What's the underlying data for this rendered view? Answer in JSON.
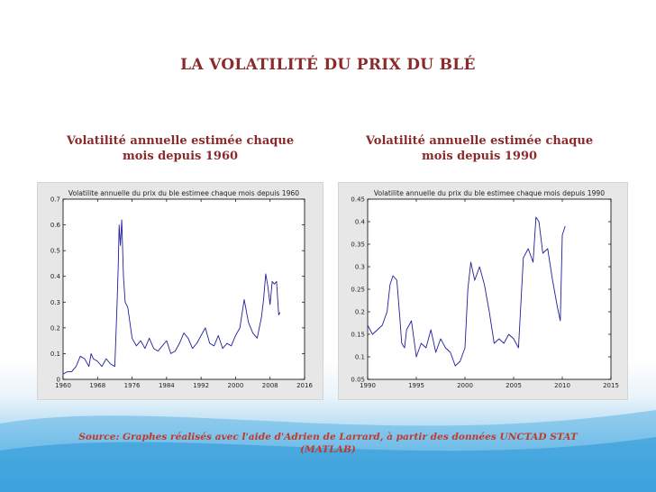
{
  "slide": {
    "title": "LA VOLATILITÉ DU PRIX DU BLÉ",
    "subtitle_left": "Volatilité annuelle estimée chaque mois depuis 1960",
    "subtitle_right": "Volatilité annuelle estimée chaque mois depuis 1990",
    "source": "Source: Graphes réalisés avec l'aide d'Adrien de Larrard, à partir des données UNCTAD STAT (MATLAB)"
  },
  "colors": {
    "title": "#8b2a2a",
    "source": "#c0392b",
    "series": "#1f1f9e"
  },
  "chart_data": [
    {
      "type": "line",
      "title": "Volatilite annuelle du prix du ble estimee chaque mois depuis 1960",
      "xlabel": "",
      "ylabel": "",
      "xlim": [
        1960,
        2016
      ],
      "ylim": [
        0,
        0.7
      ],
      "xticks": [
        1960,
        1968,
        1976,
        1984,
        1992,
        2000,
        2008,
        2016
      ],
      "yticks": [
        0,
        0.1,
        0.2,
        0.3,
        0.4,
        0.5,
        0.6,
        0.7
      ],
      "ytick_labels": [
        "0",
        "0.1",
        "0.2",
        "0.3",
        "0.4",
        "0.5",
        "0.6",
        "0.7"
      ],
      "grid": false,
      "series": [
        {
          "color": "#1f1f9e",
          "x": [
            1960,
            1961,
            1962,
            1963,
            1964,
            1965,
            1966,
            1966.5,
            1967,
            1968,
            1969,
            1970,
            1971,
            1972,
            1972.5,
            1972.8,
            1973,
            1973.3,
            1973.6,
            1974,
            1974.4,
            1975,
            1976,
            1977,
            1978,
            1979,
            1980,
            1981,
            1982,
            1983,
            1984,
            1985,
            1986,
            1987,
            1988,
            1989,
            1990,
            1991,
            1992,
            1993,
            1994,
            1995,
            1996,
            1997,
            1998,
            1999,
            2000,
            2001,
            2002,
            2003,
            2004,
            2005,
            2006,
            2006.5,
            2007,
            2007.5,
            2008,
            2008.5,
            2009,
            2009.5,
            2010,
            2010.3
          ],
          "y": [
            0.02,
            0.03,
            0.03,
            0.05,
            0.09,
            0.08,
            0.05,
            0.1,
            0.08,
            0.07,
            0.05,
            0.08,
            0.06,
            0.05,
            0.28,
            0.45,
            0.6,
            0.52,
            0.62,
            0.4,
            0.3,
            0.28,
            0.16,
            0.13,
            0.15,
            0.12,
            0.16,
            0.12,
            0.11,
            0.13,
            0.15,
            0.1,
            0.11,
            0.14,
            0.18,
            0.16,
            0.12,
            0.14,
            0.17,
            0.2,
            0.14,
            0.13,
            0.17,
            0.12,
            0.14,
            0.13,
            0.17,
            0.2,
            0.31,
            0.22,
            0.18,
            0.16,
            0.24,
            0.31,
            0.41,
            0.36,
            0.29,
            0.38,
            0.37,
            0.38,
            0.25,
            0.26
          ]
        }
      ]
    },
    {
      "type": "line",
      "title": "Volatilite annuelle du prix du ble estimee chaque mois depuis 1990",
      "xlabel": "",
      "ylabel": "",
      "xlim": [
        1990,
        2015
      ],
      "ylim": [
        0.05,
        0.45
      ],
      "xticks": [
        1990,
        1995,
        2000,
        2005,
        2010,
        2015
      ],
      "yticks": [
        0.05,
        0.1,
        0.15,
        0.2,
        0.25,
        0.3,
        0.35,
        0.4,
        0.45
      ],
      "ytick_labels": [
        "0.05",
        "0.1",
        "0.15",
        "0.2",
        "0.25",
        "0.3",
        "0.35",
        "0.4",
        "0.45"
      ],
      "grid": false,
      "series": [
        {
          "color": "#1f1f9e",
          "x": [
            1990,
            1990.5,
            1991,
            1991.5,
            1992,
            1992.3,
            1992.6,
            1993,
            1993.3,
            1993.5,
            1993.8,
            1994,
            1994.5,
            1995,
            1995.5,
            1996,
            1996.5,
            1997,
            1997.5,
            1998,
            1998.5,
            1999,
            1999.5,
            2000,
            2000.3,
            2000.6,
            2001,
            2001.5,
            2002,
            2002.5,
            2003,
            2003.5,
            2004,
            2004.5,
            2005,
            2005.5,
            2006,
            2006.5,
            2007,
            2007.3,
            2007.6,
            2008,
            2008.5,
            2009,
            2009.5,
            2009.8,
            2010,
            2010.3
          ],
          "y": [
            0.17,
            0.15,
            0.16,
            0.17,
            0.2,
            0.26,
            0.28,
            0.27,
            0.19,
            0.13,
            0.12,
            0.16,
            0.18,
            0.1,
            0.13,
            0.12,
            0.16,
            0.11,
            0.14,
            0.12,
            0.11,
            0.08,
            0.09,
            0.12,
            0.25,
            0.31,
            0.27,
            0.3,
            0.26,
            0.2,
            0.13,
            0.14,
            0.13,
            0.15,
            0.14,
            0.12,
            0.32,
            0.34,
            0.31,
            0.41,
            0.4,
            0.33,
            0.34,
            0.27,
            0.21,
            0.18,
            0.37,
            0.39
          ]
        }
      ]
    }
  ]
}
